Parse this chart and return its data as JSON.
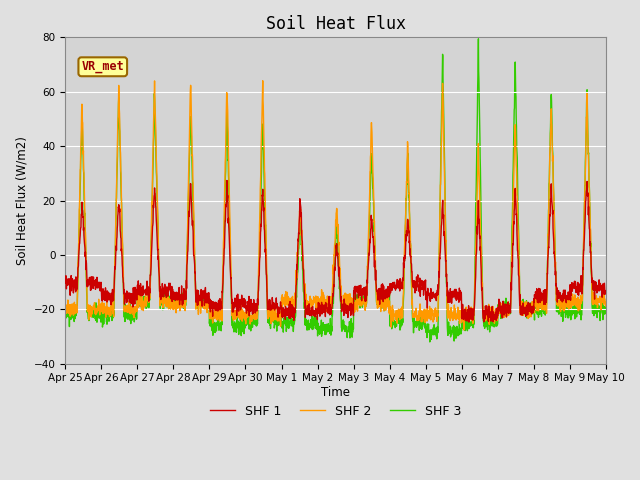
{
  "title": "Soil Heat Flux",
  "ylabel": "Soil Heat Flux (W/m2)",
  "xlabel": "Time",
  "ylim": [
    -40,
    80
  ],
  "yticks": [
    -40,
    -20,
    0,
    20,
    40,
    60,
    80
  ],
  "background_color": "#e0e0e0",
  "plot_bg_color": "#d4d4d4",
  "legend_labels": [
    "SHF 1",
    "SHF 2",
    "SHF 3"
  ],
  "legend_colors": [
    "#cc0000",
    "#ff9900",
    "#33cc00"
  ],
  "annotation_text": "VR_met",
  "annotation_box_color": "#ffff99",
  "annotation_border_color": "#996600",
  "annotation_text_color": "#990000",
  "xtick_labels": [
    "Apr 25",
    "Apr 26",
    "Apr 27",
    "Apr 28",
    "Apr 29",
    "Apr 30",
    "May 1",
    "May 2",
    "May 3",
    "May 4",
    "May 5",
    "May 6",
    "May 7",
    "May 8",
    "May 9",
    "May 10"
  ],
  "xtick_positions": [
    0,
    1,
    2,
    3,
    4,
    5,
    6,
    7,
    8,
    9,
    10,
    11,
    12,
    13,
    14,
    15
  ],
  "figsize": [
    6.4,
    4.8
  ],
  "dpi": 100
}
